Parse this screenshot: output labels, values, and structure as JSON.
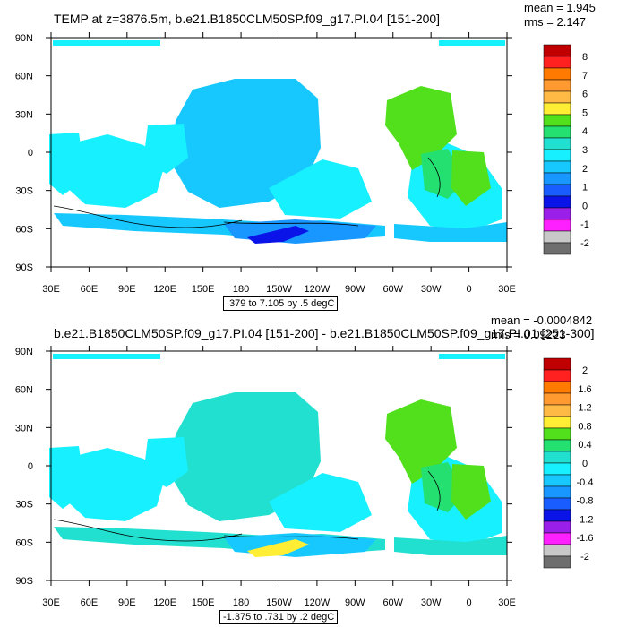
{
  "chart_data": [
    {
      "type": "heatmap",
      "title": "TEMP at z=3876.5m, b.e21.B1850CLM50SP.f09_g17.PI.04 [151-200]",
      "stats": {
        "mean": "mean = 1.945",
        "rms": "rms = 2.147"
      },
      "contour_info": ".379 to 7.105 by .5 degC",
      "xticks": [
        "30E",
        "60E",
        "90E",
        "120E",
        "150E",
        "180",
        "150W",
        "120W",
        "90W",
        "60W",
        "30W",
        "0",
        "30E"
      ],
      "yticks": [
        "90N",
        "60N",
        "30N",
        "0",
        "30S",
        "60S",
        "90S"
      ],
      "colorbar": {
        "labels": [
          "8",
          "7",
          "6",
          "5",
          "4",
          "3",
          "2",
          "1",
          "0",
          "-1",
          "-2"
        ],
        "colors": [
          "#c00000",
          "#ff2020",
          "#ff7a00",
          "#ff9a30",
          "#ffba45",
          "#ffee33",
          "#52e01d",
          "#23e070",
          "#22e0d0",
          "#17f0ff",
          "#17c8ff",
          "#1797ff",
          "#1a5dff",
          "#0a14e8",
          "#9a1fe8",
          "#ff20ff",
          "#c8c8c8",
          "#6e6e6e"
        ]
      },
      "colors": {
        "ocean": "#17c8ff",
        "ocean_shallow": "#17f0ff",
        "warm": "#52e01d",
        "warm2": "#23e070",
        "cold": "#1797ff",
        "coldest": "#0a14e8"
      }
    },
    {
      "type": "heatmap",
      "title": "b.e21.B1850CLM50SP.f09_g17.PI.04 [151-200] - b.e21.B1850CLM50SP.f09_g17.PI.01 [251-300]",
      "stats": {
        "mean": "mean = -0.0004842",
        "rms": "rms = 0.09223"
      },
      "contour_info": "-1.375 to .731 by .2 degC",
      "xticks": [
        "30E",
        "60E",
        "90E",
        "120E",
        "150E",
        "180",
        "150W",
        "120W",
        "90W",
        "60W",
        "30W",
        "0",
        "30E"
      ],
      "yticks": [
        "90N",
        "60N",
        "30N",
        "0",
        "30S",
        "60S",
        "90S"
      ],
      "colorbar": {
        "labels": [
          "2",
          "1.6",
          "1.2",
          "0.8",
          "0.4",
          "0",
          "-0.4",
          "-0.8",
          "-1.2",
          "-1.6",
          "-2"
        ],
        "colors": [
          "#c00000",
          "#ff2020",
          "#ff7a00",
          "#ff9a30",
          "#ffba45",
          "#ffee33",
          "#52e01d",
          "#23e070",
          "#22e0d0",
          "#17f0ff",
          "#17c8ff",
          "#1797ff",
          "#1a5dff",
          "#0a14e8",
          "#9a1fe8",
          "#ff20ff",
          "#c8c8c8",
          "#6e6e6e"
        ]
      },
      "colors": {
        "ocean": "#22e0d0",
        "ocean_shallow": "#17f0ff",
        "warm": "#52e01d",
        "warm2": "#23e070",
        "cold": "#17c8ff",
        "coldest": "#ffee33"
      }
    }
  ]
}
